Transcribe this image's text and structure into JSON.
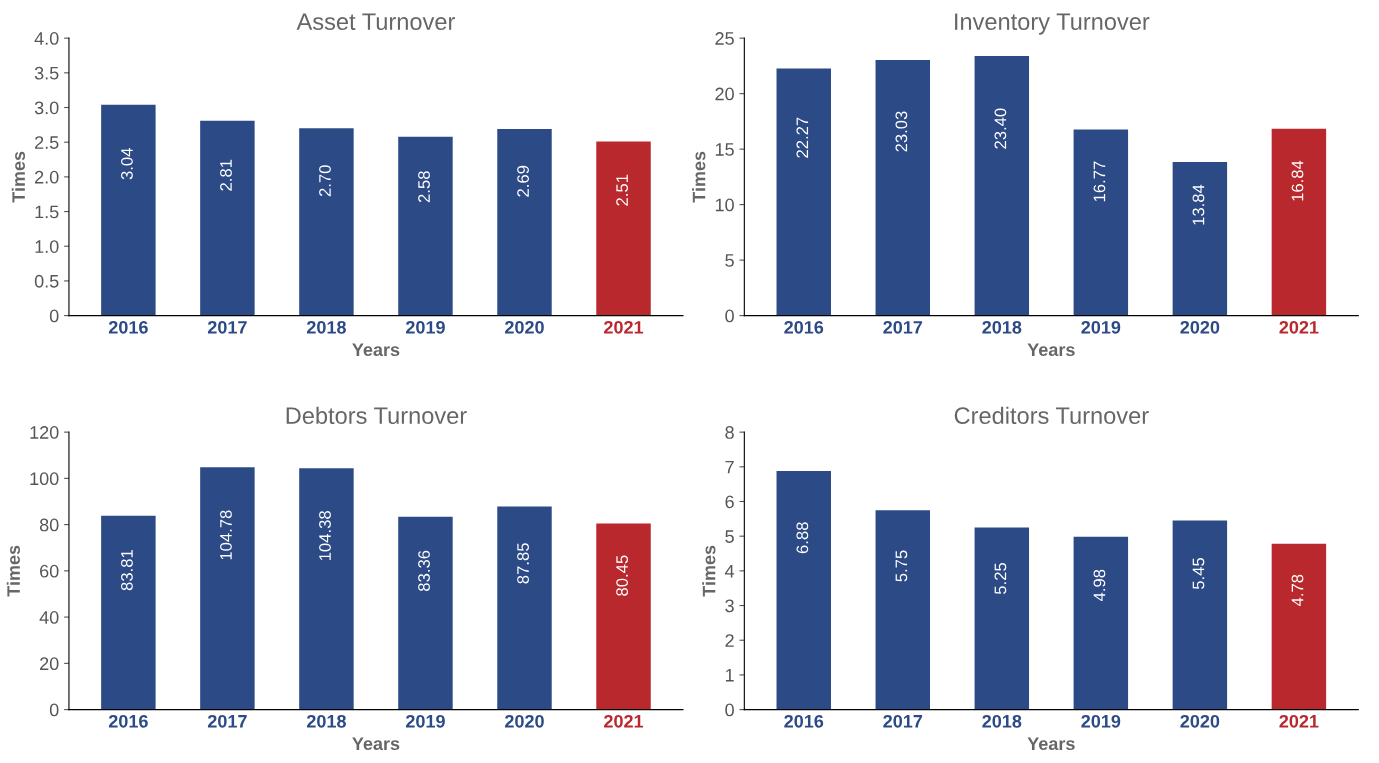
{
  "chart_data": [
    {
      "type": "bar",
      "title": "Asset Turnover",
      "xlabel": "Years",
      "ylabel": "Times",
      "categories": [
        "2016",
        "2017",
        "2018",
        "2019",
        "2020",
        "2021"
      ],
      "values": [
        3.04,
        2.81,
        2.7,
        2.58,
        2.69,
        2.51
      ],
      "value_labels": [
        "3.04",
        "2.81",
        "2.70",
        "2.58",
        "2.69",
        "2.51"
      ],
      "colors": [
        "#2c4a86",
        "#2c4a86",
        "#2c4a86",
        "#2c4a86",
        "#2c4a86",
        "#b8282d"
      ],
      "ylim": [
        0,
        4
      ],
      "yticks": [
        0,
        {
          "value": 0.5,
          "label": "0.5"
        },
        {
          "value": 1,
          "label": "1.0"
        },
        {
          "value": 1.5,
          "label": "1.5"
        },
        {
          "value": 2,
          "label": "2.0"
        },
        {
          "value": 2.5,
          "label": "2.5"
        },
        {
          "value": 3,
          "label": "3.0"
        },
        {
          "value": 3.5,
          "label": "3.5"
        },
        {
          "value": 4,
          "label": "4.0"
        }
      ],
      "grid": false
    },
    {
      "type": "bar",
      "title": "Inventory Turnover",
      "xlabel": "Years",
      "ylabel": "Times",
      "categories": [
        "2016",
        "2017",
        "2018",
        "2019",
        "2020",
        "2021"
      ],
      "values": [
        22.27,
        23.03,
        23.4,
        16.77,
        13.84,
        16.84
      ],
      "value_labels": [
        "22.27",
        "23.03",
        "23.40",
        "16.77",
        "13.84",
        "16.84"
      ],
      "colors": [
        "#2c4a86",
        "#2c4a86",
        "#2c4a86",
        "#2c4a86",
        "#2c4a86",
        "#b8282d"
      ],
      "ylim": [
        0,
        25
      ],
      "yticks": [
        0,
        5,
        10,
        15,
        20,
        25
      ],
      "grid": false
    },
    {
      "type": "bar",
      "title": "Debtors Turnover",
      "xlabel": "Years",
      "ylabel": "Times",
      "categories": [
        "2016",
        "2017",
        "2018",
        "2019",
        "2020",
        "2021"
      ],
      "values": [
        83.81,
        104.78,
        104.38,
        83.36,
        87.85,
        80.45
      ],
      "value_labels": [
        "83.81",
        "104.78",
        "104.38",
        "83.36",
        "87.85",
        "80.45"
      ],
      "colors": [
        "#2c4a86",
        "#2c4a86",
        "#2c4a86",
        "#2c4a86",
        "#2c4a86",
        "#b8282d"
      ],
      "ylim": [
        0,
        120
      ],
      "yticks": [
        0,
        20,
        40,
        60,
        80,
        100,
        120
      ],
      "grid": false
    },
    {
      "type": "bar",
      "title": "Creditors Turnover",
      "xlabel": "Years",
      "ylabel": "Times",
      "categories": [
        "2016",
        "2017",
        "2018",
        "2019",
        "2020",
        "2021"
      ],
      "values": [
        6.88,
        5.75,
        5.25,
        4.98,
        5.45,
        4.78
      ],
      "value_labels": [
        "6.88",
        "5.75",
        "5.25",
        "4.98",
        "5.45",
        "4.78"
      ],
      "colors": [
        "#2c4a86",
        "#2c4a86",
        "#2c4a86",
        "#2c4a86",
        "#2c4a86",
        "#b8282d"
      ],
      "ylim": [
        0,
        8
      ],
      "yticks": [
        0,
        1,
        2,
        3,
        4,
        5,
        6,
        7,
        8
      ],
      "grid": false
    }
  ]
}
